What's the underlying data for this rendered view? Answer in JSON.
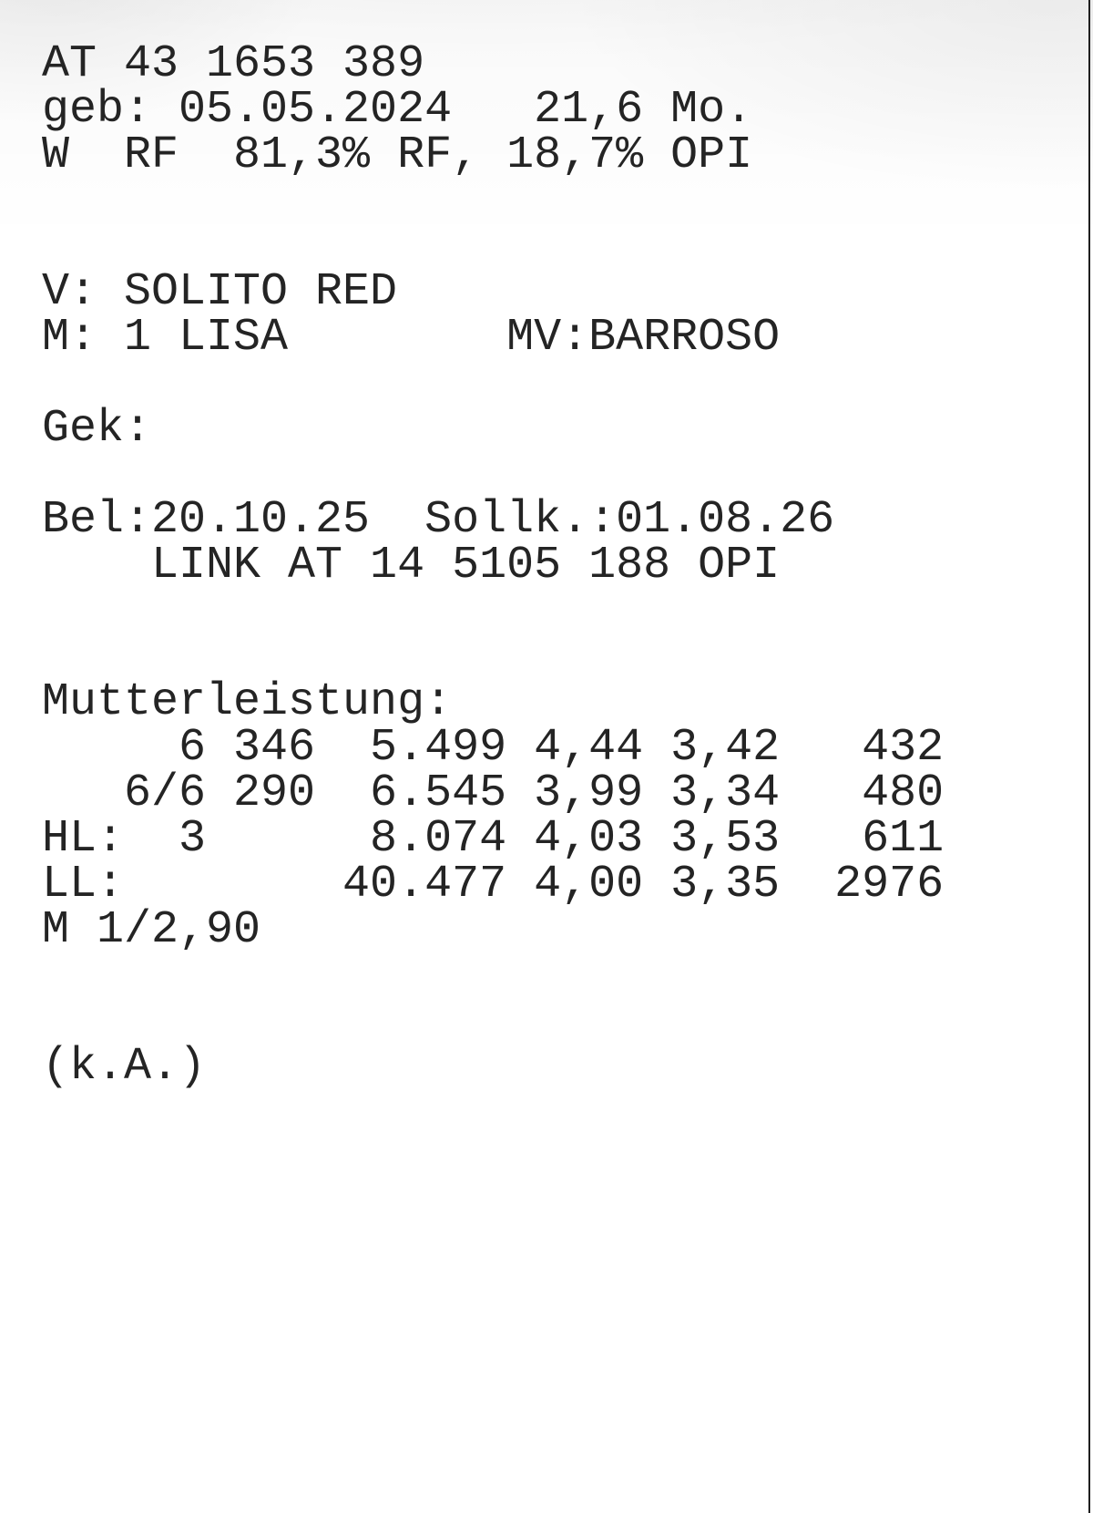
{
  "colors": {
    "text": "#242424",
    "page_background": "#ffffff",
    "right_edge_line": "#1f1f1f"
  },
  "doc": {
    "lines": [
      "AT 43 1653 389",
      "geb: 05.05.2024   21,6 Mo.",
      "W  RF  81,3% RF, 18,7% OPI",
      "",
      "",
      "V: SOLITO RED",
      "M: 1 LISA        MV:BARROSO",
      "",
      "Gek:",
      "",
      "Bel:20.10.25  Sollk.:01.08.26",
      "    LINK AT 14 5105 188 OPI",
      "",
      "",
      "Mutterleistung:",
      "     6 346  5.499 4,44 3,42   432",
      "   6/6 290  6.545 3,99 3,34   480",
      "HL:  3      8.074 4,03 3,53   611",
      "LL:        40.477 4,00 3,35  2976",
      "M 1/2,90",
      "",
      "",
      "(k.A.)"
    ]
  },
  "record": {
    "animal_id": "AT 43 1653 389",
    "birth": {
      "label": "geb:",
      "date": "05.05.2024",
      "age": "21,6 Mo."
    },
    "sex": "W",
    "breed": "RF",
    "blood_shares": "81,3% RF, 18,7% OPI",
    "sire": {
      "label": "V:",
      "name": "SOLITO RED"
    },
    "dam": {
      "label": "M:",
      "name": "1 LISA"
    },
    "dam_sire": {
      "label": "MV:",
      "name": "BARROSO"
    },
    "gek": {
      "label": "Gek:",
      "value": ""
    },
    "insemination": {
      "label": "Bel:",
      "date": "20.10.25"
    },
    "due": {
      "label": "Sollk.:",
      "date": "01.08.26"
    },
    "service_sire": "LINK AT 14 5105 188 OPI",
    "dam_performance": {
      "title": "Mutterleistung:",
      "rows": [
        {
          "label": "",
          "lactation": "6",
          "days": "346",
          "milk_kg": "5.499",
          "fat_pct": "4,44",
          "protein_pct": "3,42",
          "fat_protein_kg": "432"
        },
        {
          "label": "",
          "lactation": "6/6",
          "days": "290",
          "milk_kg": "6.545",
          "fat_pct": "3,99",
          "protein_pct": "3,34",
          "fat_protein_kg": "480"
        },
        {
          "label": "HL:",
          "lactation": "3",
          "days": "",
          "milk_kg": "8.074",
          "fat_pct": "4,03",
          "protein_pct": "3,53",
          "fat_protein_kg": "611"
        },
        {
          "label": "LL:",
          "lactation": "",
          "days": "",
          "milk_kg": "40.477",
          "fat_pct": "4,00",
          "protein_pct": "3,35",
          "fat_protein_kg": "2976"
        }
      ]
    },
    "milkability": "M 1/2,90",
    "note": "(k.A.)"
  }
}
